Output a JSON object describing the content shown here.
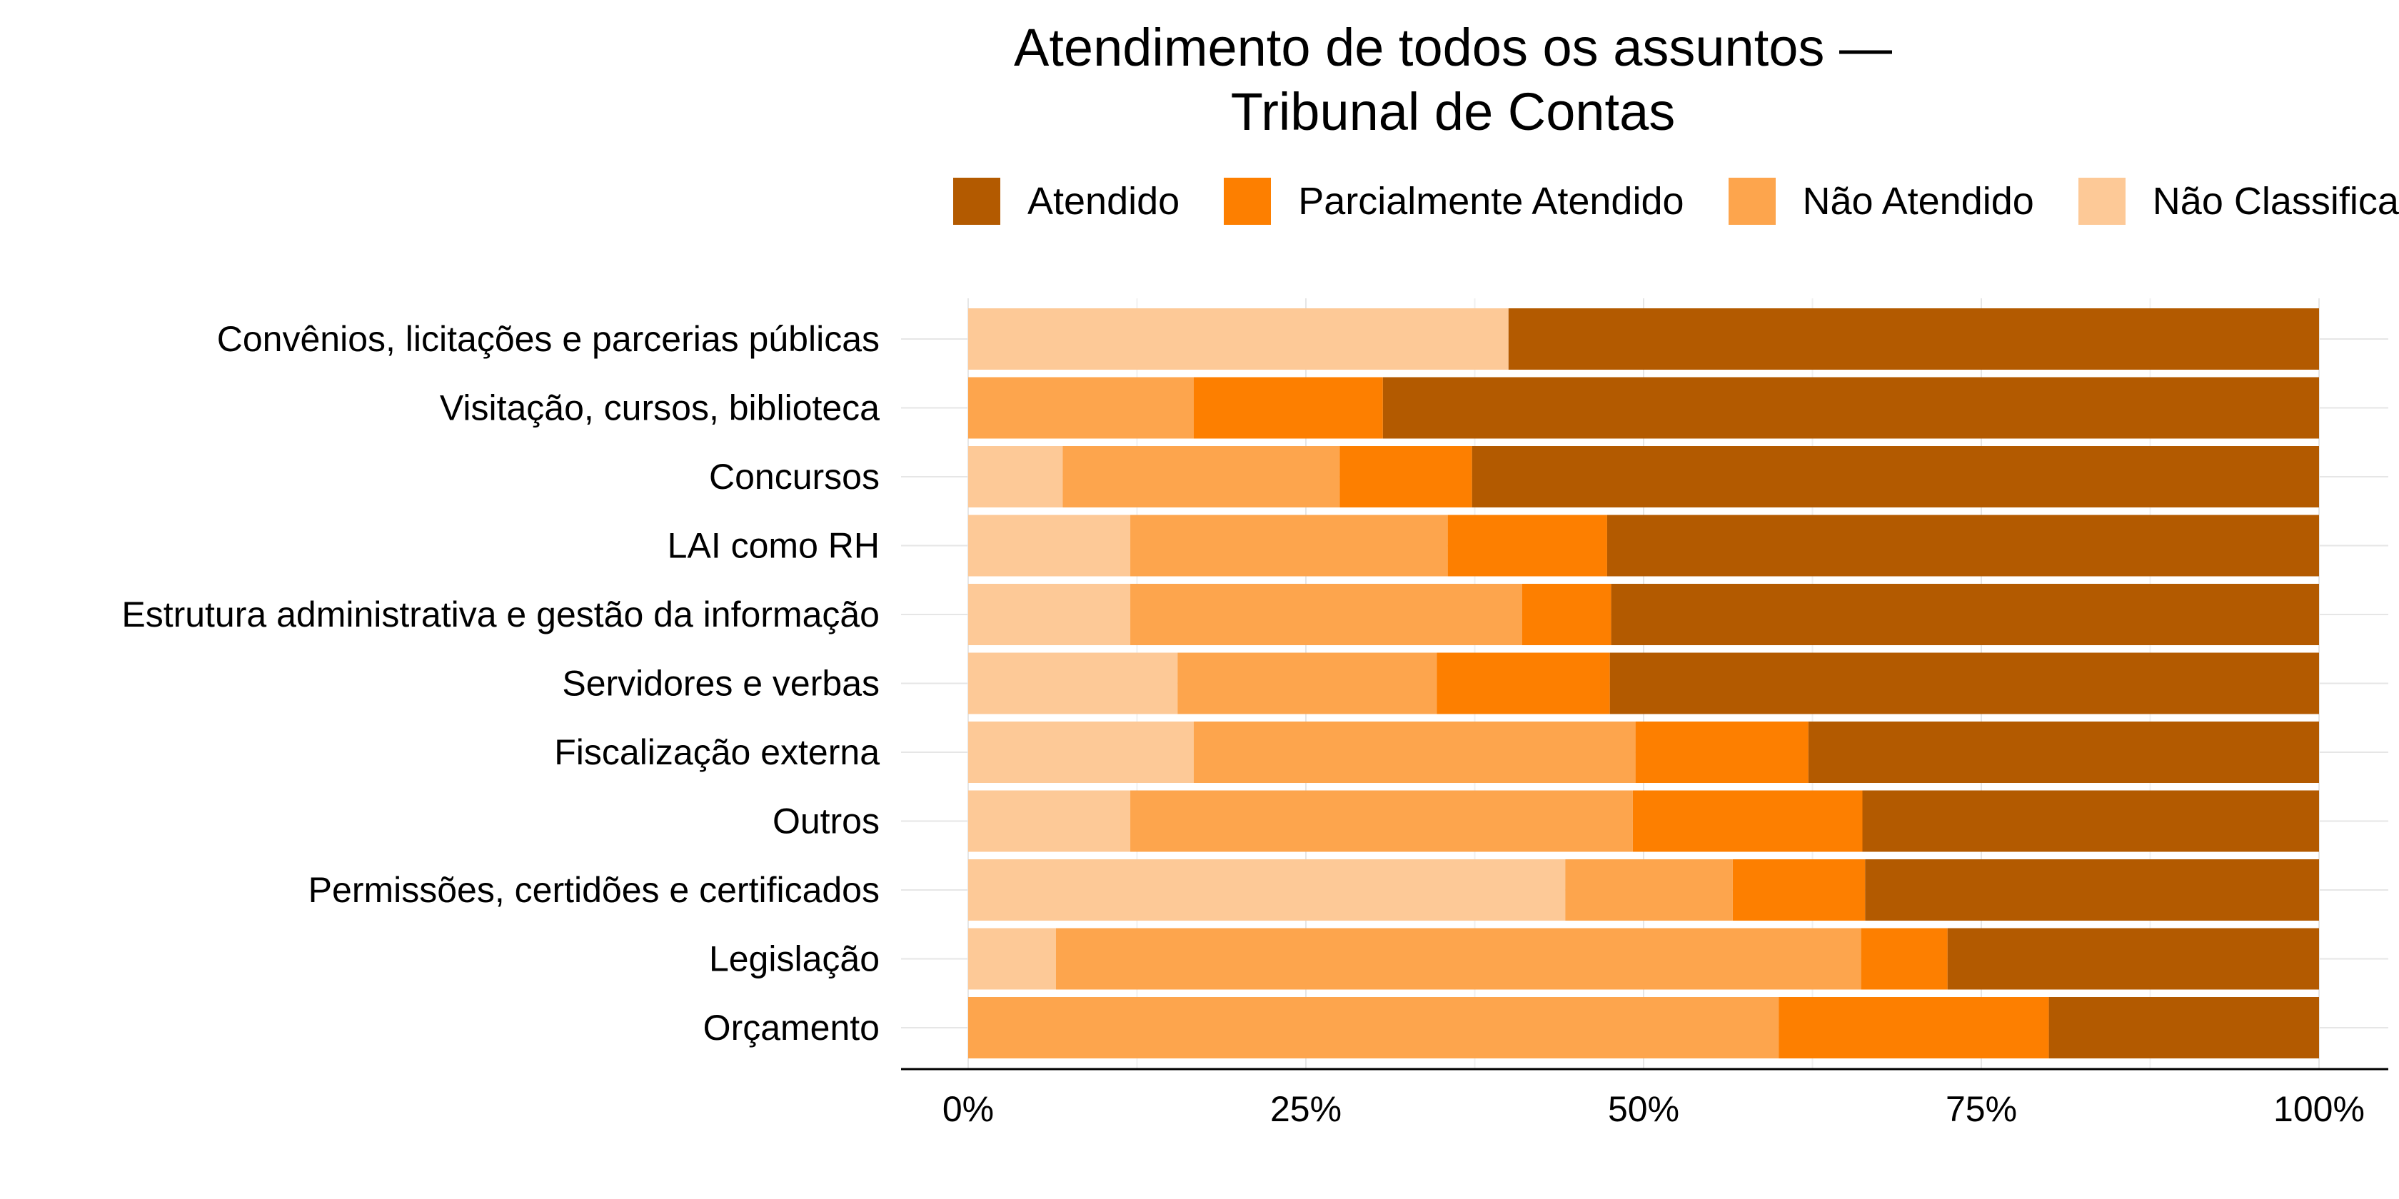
{
  "chart_data": {
    "type": "bar",
    "orientation": "horizontal",
    "stacked": true,
    "percent": true,
    "title_line1": "Atendimento de todos os assuntos —",
    "title_line2": "Tribunal de Contas",
    "xlabel": "",
    "ylabel": "",
    "xlim": [
      0,
      1
    ],
    "x_ticks": [
      "0%",
      "25%",
      "50%",
      "75%",
      "100%"
    ],
    "legend_position": "top",
    "grid": true,
    "categories": [
      "Convênios, licitações e parcerias públicas",
      "Visitação, cursos, biblioteca",
      "Concursos",
      "LAI como RH",
      "Estrutura administrativa e gestão da informação",
      "Servidores e verbas",
      "Fiscalização externa",
      "Outros",
      "Permissões, certidões e certificados",
      "Legislação",
      "Orçamento"
    ],
    "series": [
      {
        "name": "Não Classificado",
        "color": "#FDC997",
        "values": [
          0.4,
          0.0,
          0.07,
          0.12,
          0.12,
          0.155,
          0.167,
          0.12,
          0.442,
          0.065,
          0.0
        ]
      },
      {
        "name": "Não Atendido",
        "color": "#FDA54D",
        "values": [
          0.0,
          0.167,
          0.205,
          0.235,
          0.29,
          0.192,
          0.327,
          0.372,
          0.124,
          0.596,
          0.6
        ]
      },
      {
        "name": "Parcialmente Atendido",
        "color": "#FD7F00",
        "values": [
          0.0,
          0.14,
          0.098,
          0.118,
          0.066,
          0.128,
          0.128,
          0.17,
          0.098,
          0.064,
          0.2
        ]
      },
      {
        "name": "Atendido",
        "color": "#B35A00",
        "values": [
          0.6,
          0.693,
          0.627,
          0.527,
          0.524,
          0.525,
          0.378,
          0.338,
          0.336,
          0.275,
          0.2
        ]
      }
    ]
  },
  "legend": [
    {
      "label": "Atendido",
      "color": "#B35A00"
    },
    {
      "label": "Parcialmente Atendido",
      "color": "#FD7F00"
    },
    {
      "label": "Não Atendido",
      "color": "#FDA54D"
    },
    {
      "label": "Não Classificado",
      "color": "#FDC997"
    }
  ]
}
